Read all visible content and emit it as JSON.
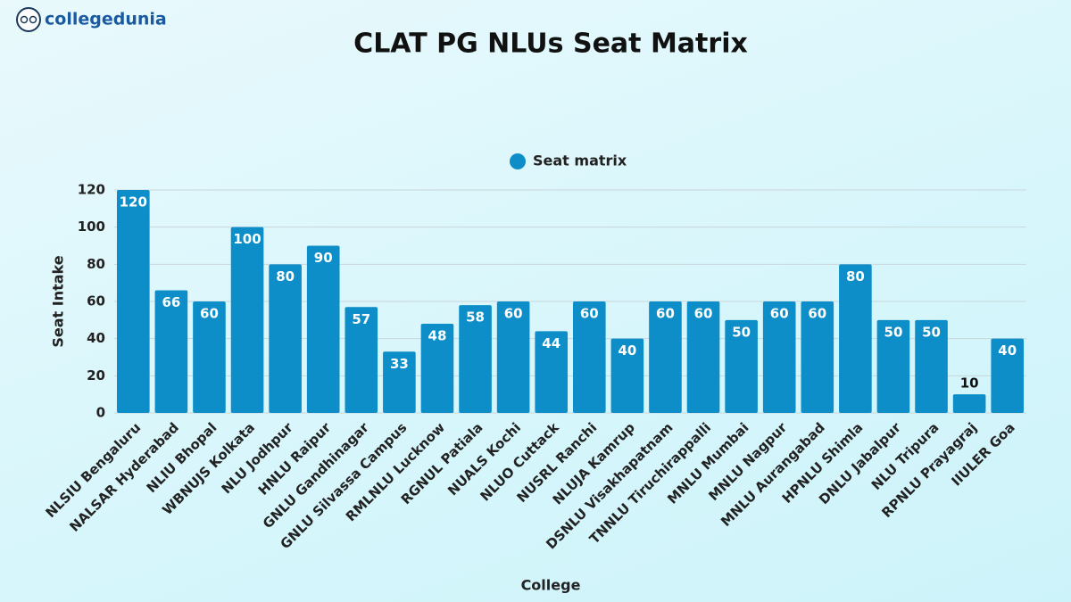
{
  "logo": {
    "text": "collegedunia"
  },
  "chart_data": {
    "type": "bar",
    "title": "CLAT PG NLUs Seat Matrix",
    "x_label": "College",
    "y_label": "Seat Intake",
    "categories": [
      "NLSIU Bengaluru",
      "NALSAR Hyderabad",
      "NLIU Bhopal",
      "WBNUJS Kolkata",
      "NLU Jodhpur",
      "HNLU Raipur",
      "GNLU Gandhinagar",
      "GNLU Silvassa Campus",
      "RMLNLU Lucknow",
      "RGNUL Patiala",
      "NUALS Kochi",
      "NLUO Cuttack",
      "NUSRL Ranchi",
      "NLUJA Kamrup",
      "DSNLU Visakhapatnam",
      "TNNLU Tiruchirappalli",
      "MNLU Mumbai",
      "MNLU Nagpur",
      "MNLU Aurangabad",
      "HPNLU Shimla",
      "DNLU Jabalpur",
      "NLU Tripura",
      "RPNLU Prayagraj",
      "IIULER Goa"
    ],
    "series": [
      {
        "name": "Seat matrix",
        "color": "#0e8ec9",
        "values": [
          120,
          66,
          60,
          100,
          80,
          90,
          57,
          33,
          48,
          58,
          60,
          44,
          60,
          40,
          60,
          60,
          50,
          60,
          60,
          80,
          50,
          50,
          10,
          40
        ]
      }
    ],
    "ylim": [
      0,
      120
    ],
    "yticks": [
      0,
      20,
      40,
      60,
      80,
      100,
      120
    ],
    "grid": true,
    "legend": "top"
  }
}
